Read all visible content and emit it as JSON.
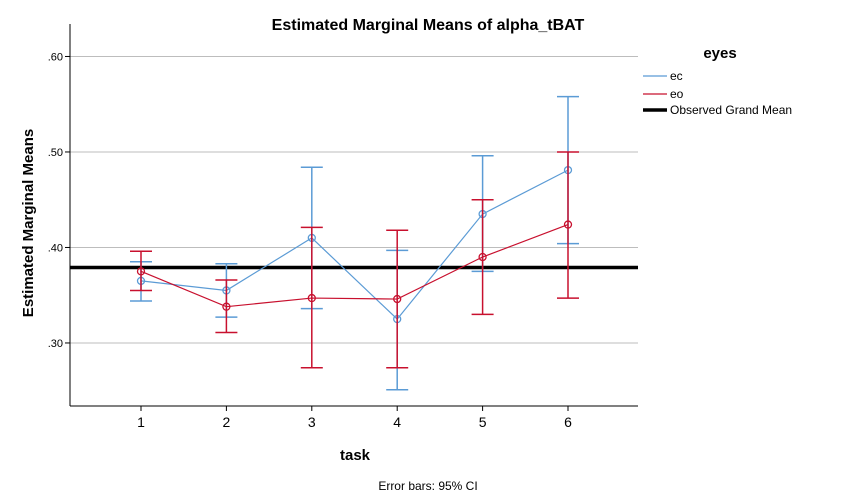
{
  "chart_data": {
    "type": "line",
    "title": "Estimated Marginal Means of alpha_tBAT",
    "xlabel": "task",
    "ylabel": "Estimated Marginal Means",
    "categories": [
      "1",
      "2",
      "3",
      "4",
      "5",
      "6"
    ],
    "y_ticks": [
      ".30",
      ".40",
      ".50",
      ".60"
    ],
    "ylim": [
      0.234,
      0.634
    ],
    "grid": "horizontal",
    "legend_title": "eyes",
    "legend_position": "top-right",
    "series": [
      {
        "name": "ec",
        "color": "#5b9bd5",
        "values": [
          0.365,
          0.355,
          0.41,
          0.325,
          0.435,
          0.481
        ],
        "ci_lower": [
          0.344,
          0.327,
          0.336,
          0.251,
          0.375,
          0.404
        ],
        "ci_upper": [
          0.385,
          0.383,
          0.484,
          0.397,
          0.496,
          0.558
        ]
      },
      {
        "name": "eo",
        "color": "#c8102e",
        "values": [
          0.375,
          0.338,
          0.347,
          0.346,
          0.39,
          0.424
        ],
        "ci_lower": [
          0.355,
          0.311,
          0.274,
          0.274,
          0.33,
          0.347
        ],
        "ci_upper": [
          0.396,
          0.366,
          0.421,
          0.418,
          0.45,
          0.5
        ]
      }
    ],
    "reference_line": {
      "name": "Observed Grand Mean",
      "value": 0.379,
      "color": "#000000"
    },
    "footnote": "Error bars: 95% CI"
  }
}
